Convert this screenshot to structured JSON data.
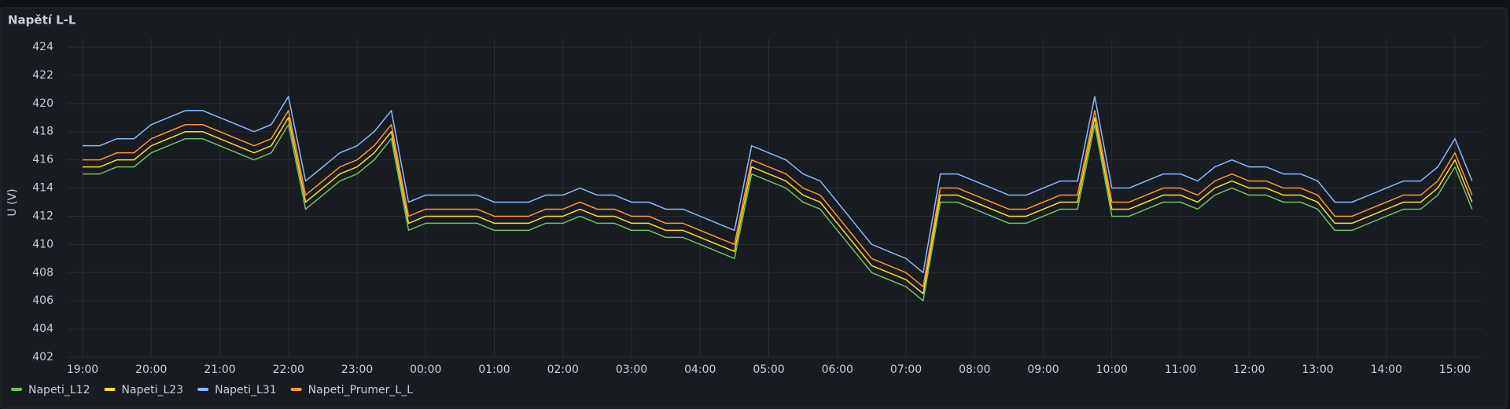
{
  "chart_data": {
    "type": "line",
    "title": "Napětí L-L",
    "y_label": "U (V)",
    "categories": [
      "19:00",
      null,
      null,
      null,
      "20:00",
      null,
      null,
      null,
      "21:00",
      null,
      null,
      null,
      "22:00",
      null,
      null,
      null,
      "23:00",
      null,
      null,
      null,
      "00:00",
      null,
      null,
      null,
      "01:00",
      null,
      null,
      null,
      "02:00",
      null,
      null,
      null,
      "03:00",
      null,
      null,
      null,
      "04:00",
      null,
      null,
      null,
      "05:00",
      null,
      null,
      null,
      "06:00",
      null,
      null,
      null,
      "07:00",
      null,
      null,
      null,
      "08:00",
      null,
      null,
      null,
      "09:00",
      null,
      null,
      null,
      "10:00",
      null,
      null,
      null,
      "11:00",
      null,
      null,
      null,
      "12:00",
      null,
      null,
      null,
      "13:00",
      null,
      null,
      null,
      "14:00",
      null,
      null,
      null,
      "15:00",
      null
    ],
    "series": [
      {
        "name": "Napeti_L12",
        "color": "#73bf69",
        "values": [
          415,
          415,
          415.5,
          415.5,
          416.5,
          417,
          417.5,
          417.5,
          417,
          416.5,
          416,
          416.5,
          418.5,
          412.5,
          413.5,
          414.5,
          415,
          416,
          417.5,
          411,
          411.5,
          411.5,
          411.5,
          411.5,
          411,
          411,
          411,
          411.5,
          411.5,
          412,
          411.5,
          411.5,
          411,
          411,
          410.5,
          410.5,
          410,
          409.5,
          409,
          415,
          414.5,
          414,
          413,
          412.5,
          411,
          409.5,
          408,
          407.5,
          407,
          406,
          413,
          413,
          412.5,
          412,
          411.5,
          411.5,
          412,
          412.5,
          412.5,
          418.5,
          412,
          412,
          412.5,
          413,
          413,
          412.5,
          413.5,
          414,
          413.5,
          413.5,
          413,
          413,
          412.5,
          411,
          411,
          411.5,
          412,
          412.5,
          412.5,
          413.5,
          415.5,
          412.5
        ]
      },
      {
        "name": "Napeti_L23",
        "color": "#fade2a",
        "values": [
          415.5,
          415.5,
          416,
          416,
          417,
          417.5,
          418,
          418,
          417.5,
          417,
          416.5,
          417,
          419,
          413,
          414,
          415,
          415.5,
          416.5,
          418,
          411.5,
          412,
          412,
          412,
          412,
          411.5,
          411.5,
          411.5,
          412,
          412,
          412.5,
          412,
          412,
          411.5,
          411.5,
          411,
          411,
          410.5,
          410,
          409.5,
          415.5,
          415,
          414.5,
          413.5,
          413,
          411.5,
          410,
          408.5,
          408,
          407.5,
          406.5,
          413.5,
          413.5,
          413,
          412.5,
          412,
          412,
          412.5,
          413,
          413,
          419,
          412.5,
          412.5,
          413,
          413.5,
          413.5,
          413,
          414,
          414.5,
          414,
          414,
          413.5,
          413.5,
          413,
          411.5,
          411.5,
          412,
          412.5,
          413,
          413,
          414,
          416,
          413
        ]
      },
      {
        "name": "Napeti_L31",
        "color": "#8ab8ff",
        "values": [
          417,
          417,
          417.5,
          417.5,
          418.5,
          419,
          419.5,
          419.5,
          419,
          418.5,
          418,
          418.5,
          420.5,
          414.5,
          415.5,
          416.5,
          417,
          418,
          419.5,
          413,
          413.5,
          413.5,
          413.5,
          413.5,
          413,
          413,
          413,
          413.5,
          413.5,
          414,
          413.5,
          413.5,
          413,
          413,
          412.5,
          412.5,
          412,
          411.5,
          411,
          417,
          416.5,
          416,
          415,
          414.5,
          413,
          411.5,
          410,
          409.5,
          409,
          408,
          415,
          415,
          414.5,
          414,
          413.5,
          413.5,
          414,
          414.5,
          414.5,
          420.5,
          414,
          414,
          414.5,
          415,
          415,
          414.5,
          415.5,
          416,
          415.5,
          415.5,
          415,
          415,
          414.5,
          413,
          413,
          413.5,
          414,
          414.5,
          414.5,
          415.5,
          417.5,
          414.5
        ]
      },
      {
        "name": "Napeti_Prumer_L_L",
        "color": "#ff9830",
        "values": [
          416,
          416,
          416.5,
          416.5,
          417.5,
          418,
          418.5,
          418.5,
          418,
          417.5,
          417,
          417.5,
          419.5,
          413.5,
          414.5,
          415.5,
          416,
          417,
          418.5,
          412,
          412.5,
          412.5,
          412.5,
          412.5,
          412,
          412,
          412,
          412.5,
          412.5,
          413,
          412.5,
          412.5,
          412,
          412,
          411.5,
          411.5,
          411,
          410.5,
          410,
          416,
          415.5,
          415,
          414,
          413.5,
          412,
          410.5,
          409,
          408.5,
          408,
          407,
          414,
          414,
          413.5,
          413,
          412.5,
          412.5,
          413,
          413.5,
          413.5,
          419.5,
          413,
          413,
          413.5,
          414,
          414,
          413.5,
          414.5,
          415,
          414.5,
          414.5,
          414,
          414,
          413.5,
          412,
          412,
          412.5,
          413,
          413.5,
          413.5,
          414.5,
          416.5,
          413.5
        ]
      }
    ],
    "ylim": [
      402,
      424
    ],
    "yticks": [
      402,
      404,
      406,
      408,
      410,
      412,
      414,
      416,
      418,
      420,
      422,
      424
    ],
    "grid": true,
    "legend": "bottom-left"
  }
}
